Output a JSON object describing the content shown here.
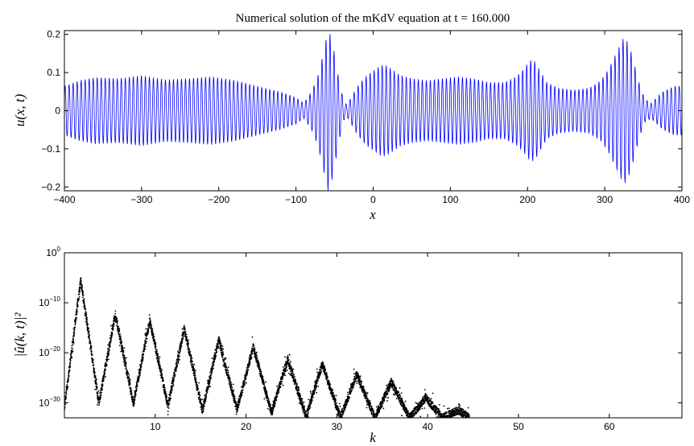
{
  "chart_data": [
    {
      "type": "line",
      "title": "Numerical solution of the mKdV equation at t = 160.000",
      "xlabel": "x",
      "ylabel": "u(x, t)",
      "xlim": [
        -400,
        400
      ],
      "ylim": [
        -0.21,
        0.21
      ],
      "x_ticks": [
        -400,
        -300,
        -200,
        -100,
        0,
        100,
        200,
        300,
        400
      ],
      "x_tick_labels": [
        "−400",
        "−300",
        "−200",
        "−100",
        "0",
        "100",
        "200",
        "300",
        "400"
      ],
      "y_ticks": [
        -0.2,
        -0.1,
        0,
        0.1,
        0.2
      ],
      "y_tick_labels": [
        "−0.2",
        "−0.1",
        "0",
        "0.1",
        "0.2"
      ],
      "grid": false,
      "line_color": "#0000ff",
      "envelope_x": [
        -400,
        -380,
        -360,
        -330,
        -300,
        -270,
        -240,
        -210,
        -180,
        -150,
        -120,
        -100,
        -90,
        -80,
        -72,
        -66,
        -62,
        -58,
        -54,
        -50,
        -46,
        -42,
        -38,
        -34,
        -30,
        -20,
        -10,
        0,
        10,
        16,
        24,
        34,
        50,
        70,
        90,
        110,
        130,
        150,
        170,
        185,
        195,
        200,
        205,
        210,
        215,
        225,
        240,
        260,
        280,
        295,
        305,
        312,
        320,
        325,
        330,
        335,
        340,
        345,
        352,
        360,
        375,
        390,
        400
      ],
      "envelope_amp": [
        0.065,
        0.08,
        0.088,
        0.085,
        0.093,
        0.082,
        0.085,
        0.09,
        0.081,
        0.065,
        0.05,
        0.035,
        0.02,
        0.05,
        0.09,
        0.14,
        0.18,
        0.215,
        0.19,
        0.15,
        0.1,
        0.06,
        0.025,
        0.015,
        0.03,
        0.065,
        0.09,
        0.105,
        0.12,
        0.12,
        0.11,
        0.095,
        0.085,
        0.08,
        0.085,
        0.09,
        0.085,
        0.075,
        0.075,
        0.09,
        0.11,
        0.125,
        0.135,
        0.13,
        0.11,
        0.075,
        0.06,
        0.055,
        0.06,
        0.08,
        0.11,
        0.14,
        0.175,
        0.195,
        0.18,
        0.15,
        0.11,
        0.07,
        0.03,
        0.02,
        0.05,
        0.065,
        0.065
      ],
      "carrier_period": 5.2
    },
    {
      "type": "scatter",
      "xlabel": "k",
      "ylabel": "|û(k, t)|²",
      "xlim": [
        0,
        68
      ],
      "ylim_log10": [
        -33,
        0
      ],
      "yscale": "log",
      "x_ticks": [
        10,
        20,
        30,
        40,
        50,
        60
      ],
      "x_tick_labels": [
        "10",
        "20",
        "30",
        "40",
        "50",
        "60"
      ],
      "y_ticks_log10": [
        0,
        -10,
        -20,
        -30
      ],
      "y_tick_bases": [
        "10",
        "10",
        "10",
        "10"
      ],
      "y_tick_exponents": [
        "0",
        "−10",
        "−20",
        "−30"
      ],
      "marker_color": "#000000",
      "peaks": [
        {
          "k": 1.8,
          "log10": -5.5
        },
        {
          "k": 5.6,
          "log10": -12.3
        },
        {
          "k": 9.4,
          "log10": -13.6
        },
        {
          "k": 13.2,
          "log10": -15.2
        },
        {
          "k": 17.0,
          "log10": -17.4
        },
        {
          "k": 20.8,
          "log10": -18.8
        },
        {
          "k": 24.6,
          "log10": -21.3
        },
        {
          "k": 28.4,
          "log10": -22.3
        },
        {
          "k": 32.2,
          "log10": -24.3
        },
        {
          "k": 36.0,
          "log10": -25.8
        },
        {
          "k": 39.8,
          "log10": -29.0
        },
        {
          "k": 43.4,
          "log10": -31.5
        }
      ],
      "troughs": [
        {
          "k": 0.0,
          "log10": -31.0
        },
        {
          "k": 3.8,
          "log10": -30.0
        },
        {
          "k": 7.6,
          "log10": -30.2
        },
        {
          "k": 11.4,
          "log10": -30.5
        },
        {
          "k": 15.2,
          "log10": -31.5
        },
        {
          "k": 19.0,
          "log10": -31.3
        },
        {
          "k": 22.8,
          "log10": -32.0
        },
        {
          "k": 26.6,
          "log10": -32.8
        },
        {
          "k": 30.4,
          "log10": -33.0
        },
        {
          "k": 34.2,
          "log10": -33.0
        },
        {
          "k": 38.0,
          "log10": -33.0
        },
        {
          "k": 41.6,
          "log10": -33.0
        },
        {
          "k": 44.6,
          "log10": -33.0
        }
      ]
    }
  ]
}
